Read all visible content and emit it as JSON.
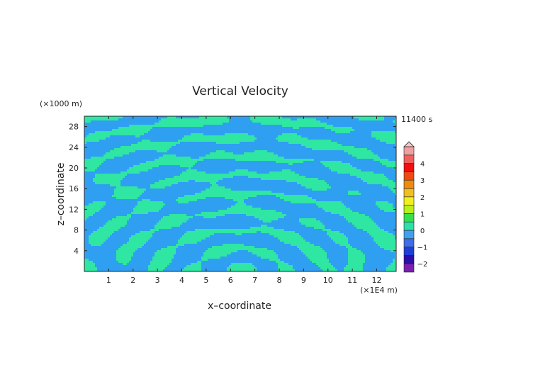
{
  "chart_data": {
    "type": "heatmap",
    "title": "Vertical Velocity",
    "xlabel": "x–coordinate",
    "ylabel": "z–coordinate",
    "x_unit": "(×1E4 m)",
    "y_unit": "(×1000 m)",
    "time_label": "11400 s",
    "xlim": [
      0,
      12.8
    ],
    "ylim": [
      0,
      30
    ],
    "x_ticks": [
      1,
      2,
      3,
      4,
      5,
      6,
      7,
      8,
      9,
      10,
      11,
      12
    ],
    "x_tick_labels": [
      "1",
      "2",
      "3",
      "4",
      "5",
      "6",
      "7",
      "8",
      "9",
      "10",
      "11",
      "12"
    ],
    "y_ticks": [
      4,
      8,
      12,
      16,
      20,
      24,
      28
    ],
    "y_tick_labels": [
      "4",
      "8",
      "12",
      "16",
      "20",
      "24",
      "28"
    ],
    "colorbar": {
      "levels": [
        -2.5,
        -2,
        -1.5,
        -1,
        -0.5,
        0,
        0.5,
        1,
        1.5,
        2,
        2.5,
        3,
        3.5,
        4,
        4.5,
        5
      ],
      "colors": [
        "#7a1fb0",
        "#2b0fa8",
        "#1f3fd6",
        "#3f6ee8",
        "#3fa0f0",
        "#2ee0a8",
        "#35e04a",
        "#b8f01a",
        "#f0f020",
        "#f0c020",
        "#f08a10",
        "#f04a10",
        "#f01010",
        "#f06060",
        "#f0a0a0"
      ],
      "tick_values": [
        -2,
        -1,
        0,
        1,
        2,
        3,
        4
      ],
      "tick_labels": [
        "−2",
        "−1",
        "0",
        "1",
        "2",
        "3",
        "4"
      ]
    },
    "field_colors": {
      "negative": "#2f9ff2",
      "positive": "#2fe6a2"
    }
  }
}
